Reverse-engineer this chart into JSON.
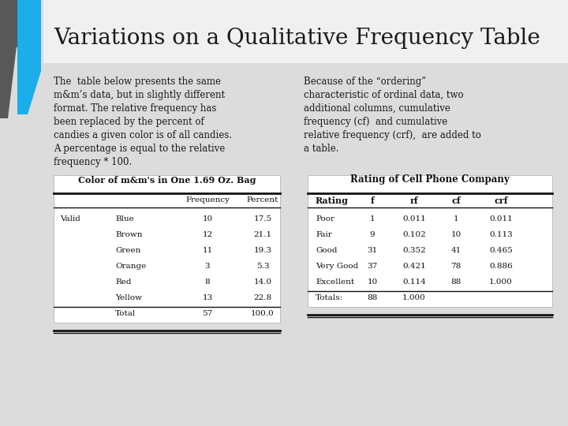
{
  "title": "Variations on a Qualitative Frequency Table",
  "left_text": "The  table below presents the same\nm&m’s data, but in slightly different\nformat. The relative frequency has\nbeen replaced by the percent of\ncandies a given color is of all candies.\nA percentage is equal to the relative\nfrequency * 100.",
  "right_text": "Because of the “ordering”\ncharacteristic of ordinal data, two\nadditional columns, cumulative\nfrequency (cf)  and cumulative\nrelative frequency (crf),  are added to\na table.",
  "slide_bg": "#e0e0e0",
  "title_area_bg": "#f2f2f2",
  "content_bg": "#e0e0e0",
  "bar_dark": "#555555",
  "bar_blue": "#1aa3e0",
  "table_bg": "#ffffff",
  "table1_title": "Color of m&m's in One 1.69 Oz. Bag",
  "table2_title": "Rating of Cell Phone Company",
  "table1_rows": [
    [
      "Valid",
      "Blue",
      "10",
      "17.5"
    ],
    [
      "",
      "Brown",
      "12",
      "21.1"
    ],
    [
      "",
      "Green",
      "11",
      "19.3"
    ],
    [
      "",
      "Orange",
      "3",
      "5.3"
    ],
    [
      "",
      "Red",
      "8",
      "14.0"
    ],
    [
      "",
      "Yellow",
      "13",
      "22.8"
    ],
    [
      "",
      "Total",
      "57",
      "100.0"
    ]
  ],
  "table2_rows": [
    [
      "Poor",
      "1",
      "0.011",
      "1",
      "0.011"
    ],
    [
      "Fair",
      "9",
      "0.102",
      "10",
      "0.113"
    ],
    [
      "Good",
      "31",
      "0.352",
      "41",
      "0.465"
    ],
    [
      "Very Good",
      "37",
      "0.421",
      "78",
      "0.886"
    ],
    [
      "Excellent",
      "10",
      "0.114",
      "88",
      "1.000"
    ],
    [
      "Totals:",
      "88",
      "1.000",
      "",
      ""
    ]
  ]
}
